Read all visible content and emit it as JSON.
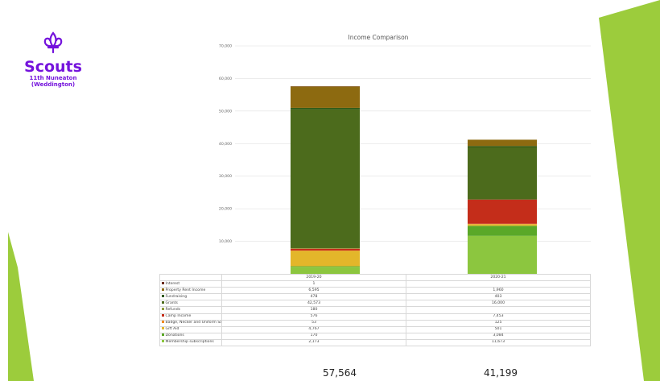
{
  "branding": {
    "name": "Scouts",
    "group_line1": "11th Nuneaton",
    "group_line2": "(Weddington)",
    "purple": "#7413dc",
    "accent_green": "#9ccc3c",
    "logo_icon": "fleur-de-lis-icon"
  },
  "chart_data": {
    "type": "bar",
    "stacked": true,
    "title": "Income Comparison",
    "categories": [
      "2019-20",
      "2020-21"
    ],
    "ylim": [
      0,
      70000
    ],
    "yticks": [
      "",
      "10,000",
      "20,000",
      "30,000",
      "40,000",
      "50,000",
      "60,000",
      "70,000"
    ],
    "grid": true,
    "legend": "table-below",
    "series": [
      {
        "name": "Interest",
        "color": "#6b2b18",
        "values": [
          1,
          0
        ],
        "display": [
          "1",
          ""
        ]
      },
      {
        "name": "Property Rent Income",
        "color": "#8d6a10",
        "values": [
          6595,
          1960
        ],
        "display": [
          "6,595",
          "1,960"
        ]
      },
      {
        "name": "Fundraising",
        "color": "#2f5a16",
        "values": [
          478,
          403
        ],
        "display": [
          "478",
          "403"
        ]
      },
      {
        "name": "Grants",
        "color": "#4c6b1c",
        "values": [
          42573,
          16000
        ],
        "display": [
          "42,573",
          "16,000"
        ]
      },
      {
        "name": "Refunds",
        "color": "#8e9a3a",
        "values": [
          180,
          0
        ],
        "display": [
          "180",
          ""
        ]
      },
      {
        "name": "Camp Income",
        "color": "#c42d1a",
        "values": [
          576,
          7453
        ],
        "display": [
          "576",
          "7,453"
        ]
      },
      {
        "name": "Badge, Necker and Uniform Sales",
        "color": "#f08a24",
        "values": [
          53,
          125
        ],
        "display": [
          "53",
          "125"
        ]
      },
      {
        "name": "Gift Aid",
        "color": "#e3b62a",
        "values": [
          4767,
          501
        ],
        "display": [
          "4,767",
          "501"
        ]
      },
      {
        "name": "Donations",
        "color": "#5aa828",
        "values": [
          170,
          3084
        ],
        "display": [
          "170",
          "3,084"
        ]
      },
      {
        "name": "Membership subscriptions",
        "color": "#8cc63f",
        "values": [
          2173,
          11673
        ],
        "display": [
          "2,173",
          "11,673"
        ]
      }
    ]
  },
  "totals": [
    "57,564",
    "41,199"
  ]
}
